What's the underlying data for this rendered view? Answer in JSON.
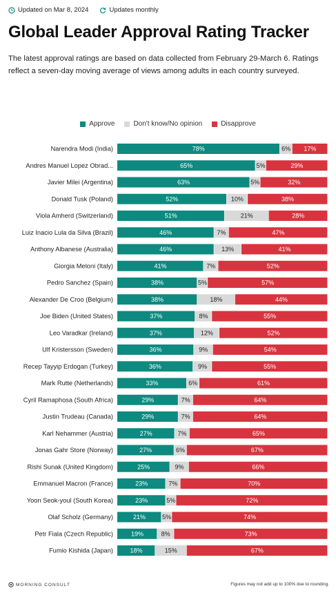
{
  "meta": {
    "updated": "Updated on Mar 8, 2024",
    "frequency": "Updates monthly"
  },
  "title": "Global Leader Approval Rating Tracker",
  "description": "The latest approval ratings are based on data collected from February 29-March 6. Ratings reflect a seven-day moving average of views among adults in each country surveyed.",
  "colors": {
    "approve": "#0e8a80",
    "neutral": "#d9d9d9",
    "disapprove": "#d8343f"
  },
  "chart_data": {
    "type": "bar",
    "stacked": true,
    "orientation": "horizontal",
    "legend_position": "top",
    "categories": [
      "Narendra Modi (India)",
      "Andres Manuel Lopez Obrad...",
      "Javier Milei (Argentina)",
      "Donald Tusk (Poland)",
      "Viola Amherd (Switzerland)",
      "Luiz Inacio Lula da Silva (Brazil)",
      "Anthony Albanese (Australia)",
      "Giorgia Meloni (Italy)",
      "Pedro Sanchez (Spain)",
      "Alexander De Croo (Belgium)",
      "Joe Biden (United States)",
      "Leo Varadkar (Ireland)",
      "Ulf Kristersson (Sweden)",
      "Recep Tayyip Erdogan (Turkey)",
      "Mark Rutte (Netherlands)",
      "Cyril Ramaphosa (South Africa)",
      "Justin Trudeau (Canada)",
      "Karl Nehammer (Austria)",
      "Jonas Gahr Store (Norway)",
      "Rishi Sunak (United Kingdom)",
      "Emmanuel Macron (France)",
      "Yoon Seok-youl (South Korea)",
      "Olaf Scholz (Germany)",
      "Petr Fiala (Czech Republic)",
      "Fumio Kishida (Japan)"
    ],
    "series": [
      {
        "name": "Approve",
        "values": [
          78,
          65,
          63,
          52,
          51,
          46,
          46,
          41,
          38,
          38,
          37,
          37,
          36,
          36,
          33,
          29,
          29,
          27,
          27,
          25,
          23,
          23,
          21,
          19,
          18
        ]
      },
      {
        "name": "Don't know/No opinion",
        "values": [
          6,
          5,
          5,
          10,
          21,
          7,
          13,
          7,
          5,
          18,
          8,
          12,
          9,
          9,
          6,
          7,
          7,
          7,
          6,
          9,
          7,
          5,
          5,
          8,
          15
        ]
      },
      {
        "name": "Disapprove",
        "values": [
          17,
          29,
          32,
          38,
          28,
          47,
          41,
          52,
          57,
          44,
          55,
          52,
          54,
          55,
          61,
          64,
          64,
          65,
          67,
          66,
          70,
          72,
          74,
          73,
          67
        ]
      }
    ],
    "value_suffix": "%"
  },
  "footer": {
    "logo": "MORNING CONSULT",
    "note": "Figures may not add up to 100% due to rounding."
  }
}
